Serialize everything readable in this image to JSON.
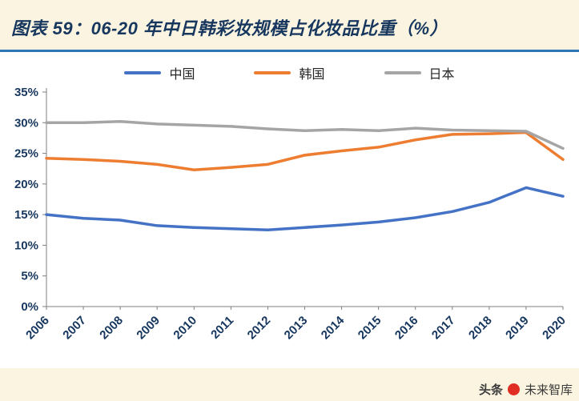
{
  "header": {
    "title": "图表 59：06-20 年中日韩彩妆规模占化妆品比重（%）"
  },
  "chart_data": {
    "type": "line",
    "title": "06-20 年中日韩彩妆规模占化妆品比重（%）",
    "x": [
      2006,
      2007,
      2008,
      2009,
      2010,
      2011,
      2012,
      2013,
      2014,
      2015,
      2016,
      2017,
      2018,
      2019,
      2020
    ],
    "series": [
      {
        "name": "中国",
        "color": "#4472c4",
        "values": [
          15.0,
          14.4,
          14.1,
          13.2,
          12.9,
          12.7,
          12.5,
          12.9,
          13.3,
          13.8,
          14.5,
          15.5,
          17.0,
          19.4,
          18.0
        ]
      },
      {
        "name": "韩国",
        "color": "#ed7d31",
        "values": [
          24.2,
          24.0,
          23.7,
          23.2,
          22.3,
          22.7,
          23.2,
          24.7,
          25.4,
          26.0,
          27.2,
          28.1,
          28.2,
          28.4,
          24.0
        ]
      },
      {
        "name": "日本",
        "color": "#a5a5a5",
        "values": [
          30.0,
          30.0,
          30.2,
          29.8,
          29.6,
          29.4,
          29.0,
          28.7,
          28.9,
          28.7,
          29.1,
          28.8,
          28.7,
          28.6,
          25.8
        ]
      }
    ],
    "ylim": [
      0,
      35
    ],
    "ytick_step": 5,
    "ytick_suffix": "%",
    "legend_position": "top",
    "grid": false,
    "axis_color": "#7f7f7f",
    "tick_label_color": "#17375e"
  },
  "watermark": {
    "brand": "头条",
    "dot_color": "#e02e24",
    "account": "未来智库"
  }
}
